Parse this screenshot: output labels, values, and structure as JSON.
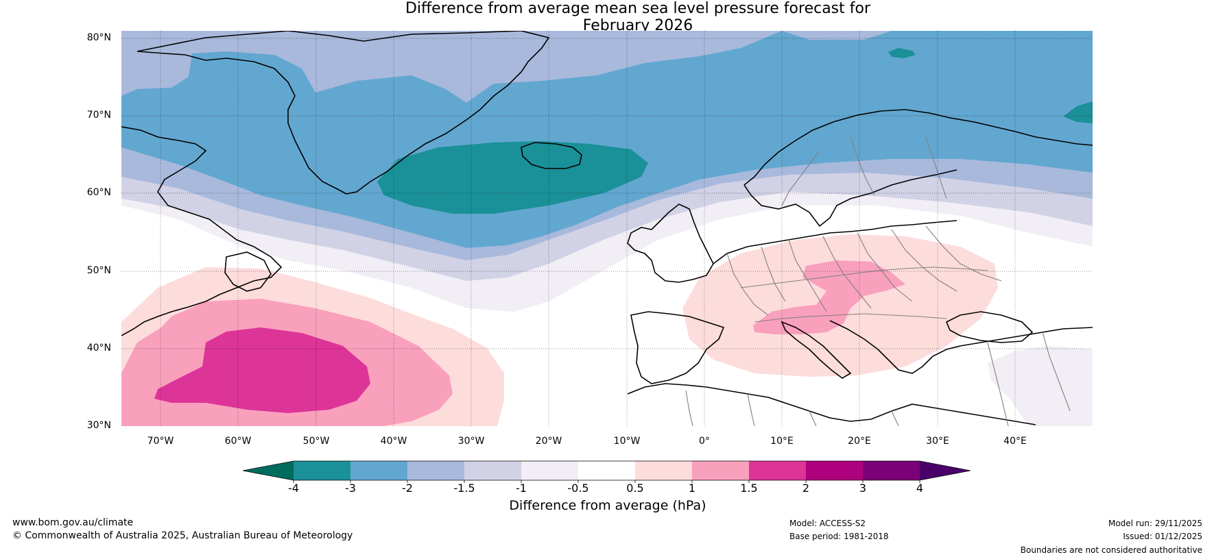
{
  "title": {
    "line1": "Difference from average mean sea level pressure forecast for",
    "line2": "February 2026"
  },
  "map": {
    "region": "North Atlantic and Europe",
    "lat_ticks": [
      "80°N",
      "70°N",
      "60°N",
      "50°N",
      "40°N",
      "30°N"
    ],
    "lon_ticks": [
      "70°W",
      "60°W",
      "50°W",
      "40°W",
      "30°W",
      "20°W",
      "10°W",
      "0°",
      "10°E",
      "20°E",
      "30°E",
      "40°E"
    ],
    "extent": {
      "lon_min": -75,
      "lon_max": 50,
      "lat_min": 30,
      "lat_max": 81
    }
  },
  "colorbar": {
    "title": "Difference from average (hPa)",
    "ticks": [
      "-4",
      "-3",
      "-2",
      "-1.5",
      "-1",
      "-0.5",
      "0.5",
      "1",
      "1.5",
      "2",
      "3",
      "4"
    ],
    "colors": [
      "#006b5f",
      "#1a9098",
      "#62a7d0",
      "#a8b9dc",
      "#d1d2e6",
      "#f2eef5",
      "#ffffff",
      "#fddcdc",
      "#f9a0bd",
      "#dd3497",
      "#ad017e",
      "#7a0177",
      "#49006a"
    ]
  },
  "footer": {
    "website": "www.bom.gov.au/climate",
    "copyright": "© Commonwealth of Australia 2025, Australian Bureau of Meteorology",
    "model": "Model: ACCESS-S2",
    "base_period": "Base period: 1981-2018",
    "model_run": "Model run: 29/11/2025",
    "issued": "Issued: 01/12/2025",
    "disclaimer": "Boundaries are not considered authoritative"
  }
}
